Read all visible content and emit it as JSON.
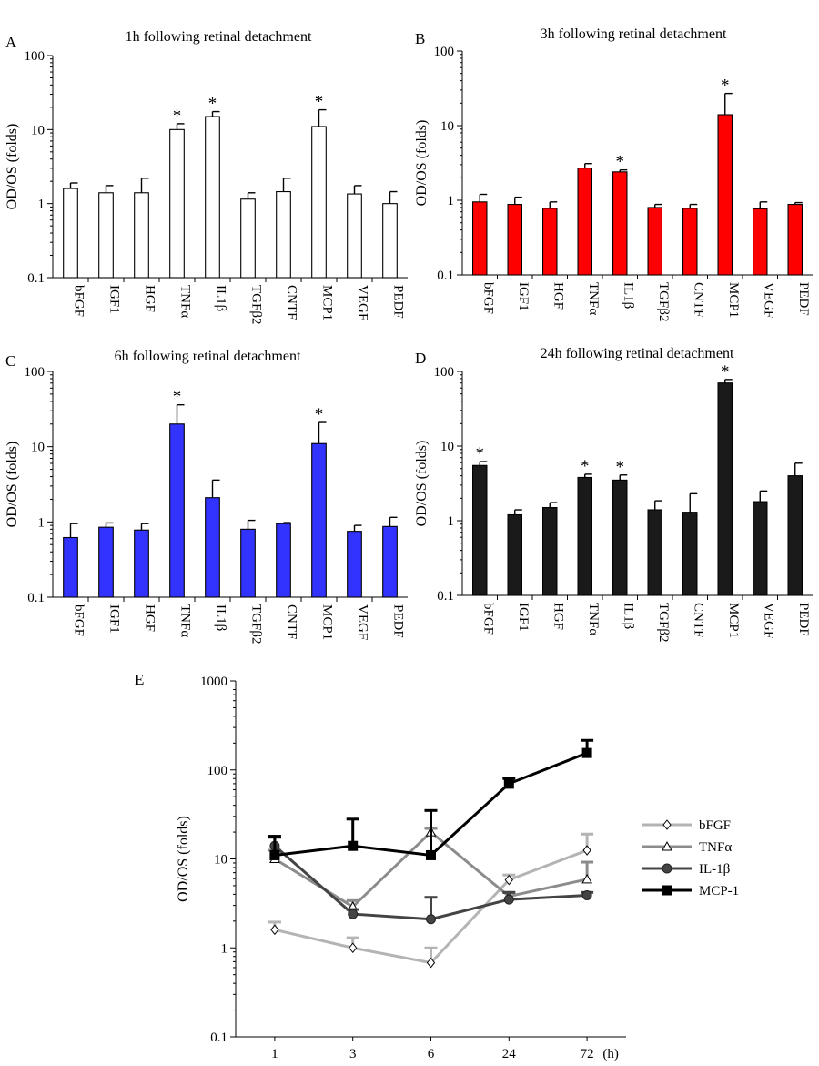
{
  "chart_data": [
    {
      "panel": "A",
      "type": "bar",
      "title": "1h following retinal detachment",
      "ylabel": "OD/OS (folds)",
      "yscale": "log",
      "ylim": [
        0.1,
        100
      ],
      "ytick_labels": [
        "100",
        "10",
        "1",
        "0.1"
      ],
      "bar_color": "#ffffff",
      "categories": [
        "bFGF",
        "IGF1",
        "HGF",
        "TNFα",
        "IL1β",
        "TGFβ2",
        "CNTF",
        "MCP1",
        "VEGF",
        "PEDF"
      ],
      "values": [
        1.6,
        1.4,
        1.4,
        10,
        15,
        1.15,
        1.45,
        11,
        1.35,
        1.0
      ],
      "errors": [
        1.9,
        1.75,
        2.2,
        12,
        17.5,
        1.4,
        2.2,
        18.5,
        1.75,
        1.45
      ],
      "significant": [
        false,
        false,
        false,
        true,
        true,
        false,
        false,
        true,
        false,
        false
      ],
      "marker": "*"
    },
    {
      "panel": "B",
      "type": "bar",
      "title": "3h following retinal detachment",
      "ylabel": "OD/OS (folds)",
      "yscale": "log",
      "ylim": [
        0.1,
        100
      ],
      "ytick_labels": [
        "100",
        "10",
        "1",
        "0.1"
      ],
      "bar_color": "#ff0000",
      "categories": [
        "bFGF",
        "IGF1",
        "HGF",
        "TNFα",
        "IL1β",
        "TGFβ2",
        "CNTF",
        "MCP1",
        "VEGF",
        "PEDF"
      ],
      "values": [
        0.95,
        0.88,
        0.78,
        2.7,
        2.4,
        0.8,
        0.78,
        14,
        0.77,
        0.88
      ],
      "errors": [
        1.2,
        1.1,
        0.95,
        3.1,
        2.55,
        0.88,
        0.88,
        27,
        0.95,
        0.93
      ],
      "significant": [
        false,
        false,
        false,
        false,
        true,
        false,
        false,
        true,
        false,
        false
      ],
      "marker": "*"
    },
    {
      "panel": "C",
      "type": "bar",
      "title": "6h following retinal detachment",
      "ylabel": "OD/OS (folds)",
      "yscale": "log",
      "ylim": [
        0.1,
        100
      ],
      "ytick_labels": [
        "100",
        "10",
        "1",
        "0.1"
      ],
      "bar_color": "#3333ff",
      "categories": [
        "bFGF",
        "IGF1",
        "HGF",
        "TNFα",
        "IL1β",
        "TGFβ2",
        "CNTF",
        "MCP1",
        "VEGF",
        "PEDF"
      ],
      "values": [
        0.62,
        0.85,
        0.78,
        20,
        2.1,
        0.8,
        0.95,
        11,
        0.75,
        0.87
      ],
      "errors": [
        0.95,
        0.97,
        0.95,
        36,
        3.6,
        1.05,
        0.98,
        21,
        0.9,
        1.15
      ],
      "significant": [
        false,
        false,
        false,
        true,
        false,
        false,
        false,
        true,
        false,
        false
      ],
      "marker": "*"
    },
    {
      "panel": "D",
      "type": "bar",
      "title": "24h following retinal detachment",
      "ylabel": "OD/OS (folds)",
      "yscale": "log",
      "ylim": [
        0.1,
        100
      ],
      "ytick_labels": [
        "100",
        "10",
        "1",
        "0.1"
      ],
      "bar_color": "#1a1a1a",
      "categories": [
        "bFGF",
        "IGF1",
        "HGF",
        "TNFα",
        "IL1β",
        "TGFβ2",
        "CNTF",
        "MCP1",
        "VEGF",
        "PEDF"
      ],
      "values": [
        5.5,
        1.2,
        1.5,
        3.8,
        3.5,
        1.4,
        1.3,
        70,
        1.8,
        4.0
      ],
      "errors": [
        6.2,
        1.4,
        1.75,
        4.2,
        4.1,
        1.85,
        2.3,
        78,
        2.5,
        5.9
      ],
      "significant": [
        true,
        false,
        false,
        true,
        true,
        false,
        false,
        true,
        false,
        false
      ],
      "marker": "*"
    },
    {
      "panel": "E",
      "type": "line",
      "ylabel": "OD/OS (folds)",
      "yscale": "log",
      "ylim": [
        0.1,
        1000
      ],
      "ytick_labels": [
        "1000",
        "100",
        "10",
        "1",
        "0.1"
      ],
      "x": [
        "1",
        "3",
        "6",
        "24",
        "72"
      ],
      "x_unit": "(h)",
      "legend_position": "right",
      "series": [
        {
          "name": "bFGF",
          "marker": "diamond-open",
          "color": "#b4b4b4",
          "values": [
            1.6,
            1.0,
            0.68,
            5.8,
            12.5
          ],
          "errors": [
            1.95,
            1.3,
            1.0,
            6.6,
            19
          ]
        },
        {
          "name": "TNFα",
          "marker": "triangle-open",
          "color": "#8c8c8c",
          "values": [
            10,
            2.9,
            20,
            3.8,
            5.9
          ],
          "errors": [
            12.5,
            3.4,
            22,
            4.2,
            9.2
          ]
        },
        {
          "name": "IL-1β",
          "marker": "circle-filled",
          "color": "#444444",
          "values": [
            14,
            2.4,
            2.1,
            3.5,
            3.9
          ],
          "errors": [
            17.5,
            2.7,
            3.7,
            4.2,
            4.2
          ]
        },
        {
          "name": "MCP-1",
          "marker": "square-filled",
          "color": "#000000",
          "values": [
            11,
            14,
            11,
            70,
            155
          ],
          "errors": [
            18,
            28,
            35,
            80,
            215
          ]
        }
      ]
    }
  ]
}
